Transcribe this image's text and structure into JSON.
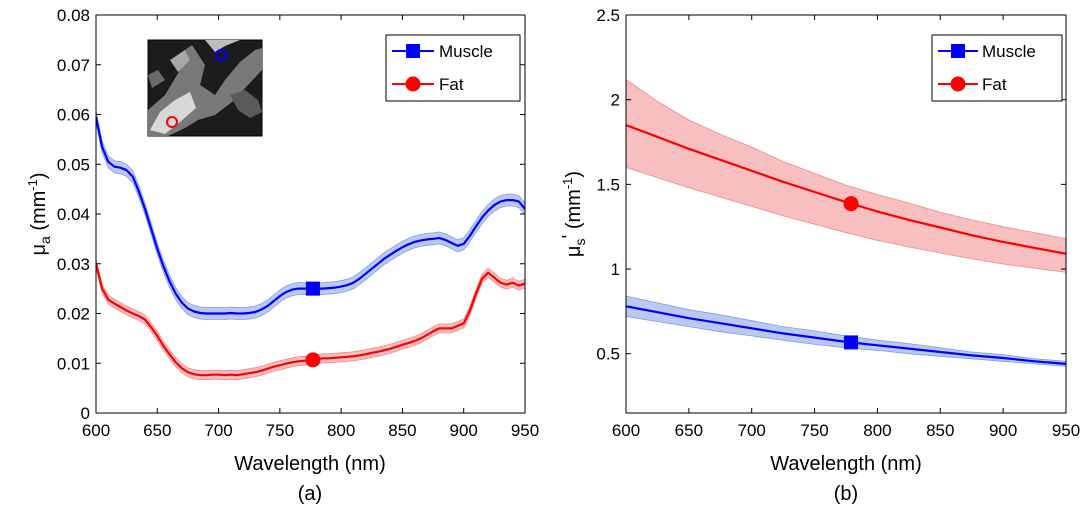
{
  "panels": [
    {
      "panel_label": "(a)",
      "chart_data": {
        "type": "line",
        "xlabel": "Wavelength (nm)",
        "ylabel": {
          "base": "μ",
          "sub": "a",
          "unit_pre": " (mm",
          "unit_sup": "-1",
          "unit_post": ")"
        },
        "xlim": [
          600,
          950
        ],
        "ylim": [
          0,
          0.08
        ],
        "xticks": [
          600,
          650,
          700,
          750,
          800,
          850,
          900,
          950
        ],
        "yticks": [
          0,
          0.01,
          0.02,
          0.03,
          0.04,
          0.05,
          0.06,
          0.07,
          0.08
        ],
        "ytick_labels": [
          "0",
          "0.01",
          "0.02",
          "0.03",
          "0.04",
          "0.05",
          "0.06",
          "0.07",
          "0.08"
        ],
        "legend_position": "top-right",
        "inset": "tissue image with a blue circle marking muscle and a red circle marking fat",
        "series": [
          {
            "name": "Muscle",
            "color": "#0000ff",
            "band_color": "#7f9ce8",
            "marker": "square",
            "marker_x": 777,
            "x": [
              600,
              605,
              610,
              615,
              620,
              625,
              630,
              635,
              640,
              645,
              650,
              655,
              660,
              665,
              670,
              675,
              680,
              685,
              690,
              695,
              700,
              705,
              710,
              715,
              720,
              725,
              730,
              735,
              740,
              745,
              750,
              755,
              760,
              765,
              770,
              775,
              780,
              785,
              790,
              795,
              800,
              805,
              810,
              815,
              820,
              825,
              830,
              835,
              840,
              845,
              850,
              855,
              860,
              865,
              870,
              875,
              880,
              885,
              890,
              895,
              900,
              905,
              910,
              915,
              920,
              925,
              930,
              935,
              940,
              945,
              950
            ],
            "y": [
              0.0595,
              0.0535,
              0.0505,
              0.0495,
              0.0493,
              0.0488,
              0.0475,
              0.0445,
              0.041,
              0.037,
              0.033,
              0.0295,
              0.0265,
              0.024,
              0.0222,
              0.021,
              0.0204,
              0.0201,
              0.02,
              0.02,
              0.02,
              0.02,
              0.0201,
              0.02,
              0.02,
              0.0201,
              0.0203,
              0.0208,
              0.0215,
              0.0225,
              0.0235,
              0.0243,
              0.0248,
              0.025,
              0.025,
              0.025,
              0.025,
              0.025,
              0.0251,
              0.0252,
              0.0254,
              0.0257,
              0.0262,
              0.027,
              0.028,
              0.029,
              0.03,
              0.031,
              0.0318,
              0.0326,
              0.0333,
              0.0339,
              0.0344,
              0.0347,
              0.0349,
              0.035,
              0.0352,
              0.0348,
              0.0342,
              0.0336,
              0.034,
              0.0356,
              0.0375,
              0.0393,
              0.0407,
              0.0418,
              0.0425,
              0.0428,
              0.0428,
              0.0425,
              0.041
            ],
            "err": 0.0012
          },
          {
            "name": "Fat",
            "color": "#ff0000",
            "band_color": "#f08a8a",
            "marker": "circle",
            "marker_x": 777,
            "x": [
              600,
              605,
              610,
              615,
              620,
              625,
              630,
              635,
              640,
              645,
              650,
              655,
              660,
              665,
              670,
              675,
              680,
              685,
              690,
              695,
              700,
              705,
              710,
              715,
              720,
              725,
              730,
              735,
              740,
              745,
              750,
              755,
              760,
              765,
              770,
              775,
              780,
              785,
              790,
              795,
              800,
              805,
              810,
              815,
              820,
              825,
              830,
              835,
              840,
              845,
              850,
              855,
              860,
              865,
              870,
              875,
              880,
              885,
              890,
              895,
              900,
              905,
              910,
              915,
              920,
              925,
              930,
              935,
              940,
              945,
              950
            ],
            "y": [
              0.03,
              0.025,
              0.0228,
              0.022,
              0.0213,
              0.0206,
              0.02,
              0.0195,
              0.0188,
              0.0172,
              0.0155,
              0.0135,
              0.0118,
              0.0102,
              0.009,
              0.0082,
              0.0078,
              0.0076,
              0.0076,
              0.0077,
              0.0077,
              0.0076,
              0.0077,
              0.0076,
              0.0078,
              0.008,
              0.0082,
              0.0085,
              0.0089,
              0.0093,
              0.0096,
              0.0099,
              0.0102,
              0.0104,
              0.0105,
              0.0106,
              0.0108,
              0.011,
              0.011,
              0.0111,
              0.0112,
              0.0113,
              0.0114,
              0.0116,
              0.0118,
              0.0121,
              0.0123,
              0.0126,
              0.0129,
              0.0133,
              0.0137,
              0.0141,
              0.0145,
              0.015,
              0.0157,
              0.0164,
              0.017,
              0.017,
              0.017,
              0.0175,
              0.018,
              0.0205,
              0.024,
              0.027,
              0.0282,
              0.0272,
              0.0262,
              0.0258,
              0.0262,
              0.0256,
              0.026
            ],
            "err": 0.0009
          }
        ]
      }
    },
    {
      "panel_label": "(b)",
      "chart_data": {
        "type": "line",
        "xlabel": "Wavelength (nm)",
        "ylabel": {
          "base": "μ",
          "sub": "s",
          "prime": "'",
          "unit_pre": " (mm",
          "unit_sup": "-1",
          "unit_post": ")"
        },
        "xlim": [
          600,
          950
        ],
        "ylim": [
          0.15,
          2.5
        ],
        "xticks": [
          600,
          650,
          700,
          750,
          800,
          850,
          900,
          950
        ],
        "yticks": [
          0.5,
          1,
          1.5,
          2,
          2.5
        ],
        "ytick_labels": [
          "0.5",
          "1",
          "1.5",
          "2",
          "2.5"
        ],
        "legend_position": "top-right",
        "series": [
          {
            "name": "Muscle",
            "color": "#0000ff",
            "band_color": "#7f9ce8",
            "marker": "square",
            "marker_x": 779,
            "x": [
              600,
              625,
              650,
              675,
              700,
              725,
              750,
              775,
              800,
              825,
              850,
              875,
              900,
              925,
              950
            ],
            "y": [
              0.78,
              0.745,
              0.71,
              0.68,
              0.65,
              0.62,
              0.595,
              0.57,
              0.55,
              0.53,
              0.51,
              0.49,
              0.475,
              0.455,
              0.44
            ],
            "err_lo": [
              0.06,
              0.055,
              0.05,
              0.05,
              0.045,
              0.04,
              0.04,
              0.035,
              0.03,
              0.03,
              0.025,
              0.02,
              0.02,
              0.015,
              0.015
            ],
            "err_hi": [
              0.06,
              0.055,
              0.05,
              0.05,
              0.045,
              0.04,
              0.04,
              0.035,
              0.03,
              0.03,
              0.025,
              0.02,
              0.02,
              0.015,
              0.015
            ]
          },
          {
            "name": "Fat",
            "color": "#ff0000",
            "band_color": "#f08a8a",
            "marker": "circle",
            "marker_x": 779,
            "x": [
              600,
              625,
              650,
              675,
              700,
              725,
              750,
              775,
              800,
              825,
              850,
              875,
              900,
              925,
              950
            ],
            "y": [
              1.85,
              1.78,
              1.71,
              1.645,
              1.58,
              1.515,
              1.455,
              1.395,
              1.34,
              1.29,
              1.245,
              1.2,
              1.16,
              1.125,
              1.09
            ],
            "err_lo": [
              0.25,
              0.24,
              0.23,
              0.22,
              0.21,
              0.2,
              0.19,
              0.18,
              0.17,
              0.16,
              0.15,
              0.14,
              0.13,
              0.12,
              0.11
            ],
            "err_hi": [
              0.27,
              0.21,
              0.17,
              0.15,
              0.14,
              0.12,
              0.11,
              0.1,
              0.1,
              0.1,
              0.09,
              0.09,
              0.09,
              0.09,
              0.09
            ]
          }
        ]
      }
    }
  ]
}
